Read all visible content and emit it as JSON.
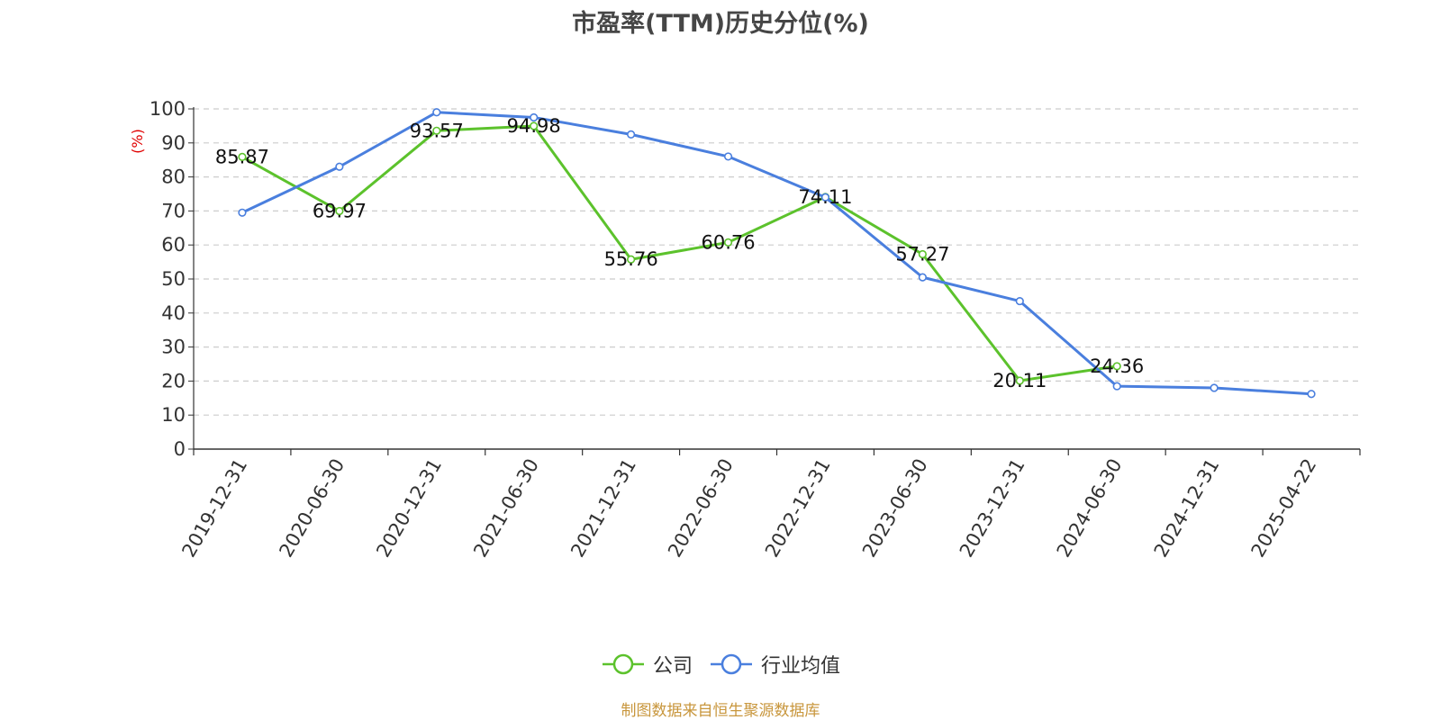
{
  "chart_data": {
    "type": "line",
    "title": "市盈率(TTM)历史分位(%)",
    "ylabel": "(%)",
    "xlabel": "",
    "ylim": [
      0,
      100
    ],
    "yticks": [
      0,
      10,
      20,
      30,
      40,
      50,
      60,
      70,
      80,
      90,
      100
    ],
    "grid": "horizontal-dashed",
    "legend_position": "bottom-center",
    "categories": [
      "2019-12-31",
      "2020-06-30",
      "2020-12-31",
      "2021-06-30",
      "2021-12-31",
      "2022-06-30",
      "2022-12-31",
      "2023-06-30",
      "2023-12-31",
      "2024-06-30",
      "2024-12-31",
      "2025-04-22"
    ],
    "series": [
      {
        "name": "公司",
        "color": "#5cc22c",
        "values": [
          85.87,
          69.97,
          93.57,
          94.98,
          55.76,
          60.76,
          74.11,
          57.27,
          20.11,
          24.36,
          null,
          null
        ],
        "labels": [
          "85.87",
          "69.97",
          "93.57",
          "94.98",
          "55.76",
          "60.76",
          "74.11",
          "57.27",
          "20.11",
          "24.36",
          null,
          null
        ]
      },
      {
        "name": "行业均值",
        "color": "#4a7fde",
        "values": [
          69.5,
          83.0,
          99.0,
          97.5,
          92.5,
          86.0,
          74.0,
          50.5,
          43.5,
          18.5,
          18.0,
          16.2
        ],
        "labels": []
      }
    ]
  },
  "footer": {
    "source": "制图数据来自恒生聚源数据库"
  }
}
